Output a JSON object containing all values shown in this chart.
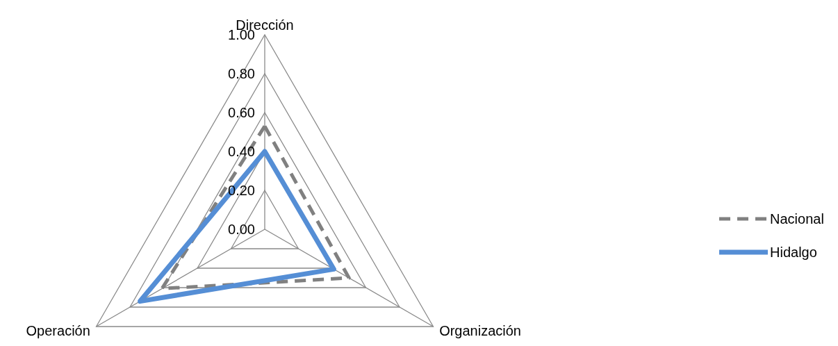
{
  "chart_data": {
    "type": "radar",
    "categories": [
      "Dirección",
      "Organización",
      "Operación"
    ],
    "series": [
      {
        "name": "Nacional",
        "color": "#808080",
        "values": [
          0.53,
          0.5,
          0.61
        ],
        "line_style": "dashed"
      },
      {
        "name": "Hidalgo",
        "color": "#558ed5",
        "values": [
          0.4,
          0.41,
          0.74
        ],
        "line_style": "solid"
      }
    ],
    "ylim": [
      0,
      1
    ],
    "yticks": [
      {
        "value": 0,
        "label": "0.00"
      },
      {
        "value": 0.2,
        "label": "0.20"
      },
      {
        "value": 0.4,
        "label": "0.40"
      },
      {
        "value": 0.6,
        "label": "0.60"
      },
      {
        "value": 0.8,
        "label": "0.80"
      },
      {
        "value": 1,
        "label": "1.00"
      }
    ],
    "grid": true,
    "legend": "right"
  }
}
